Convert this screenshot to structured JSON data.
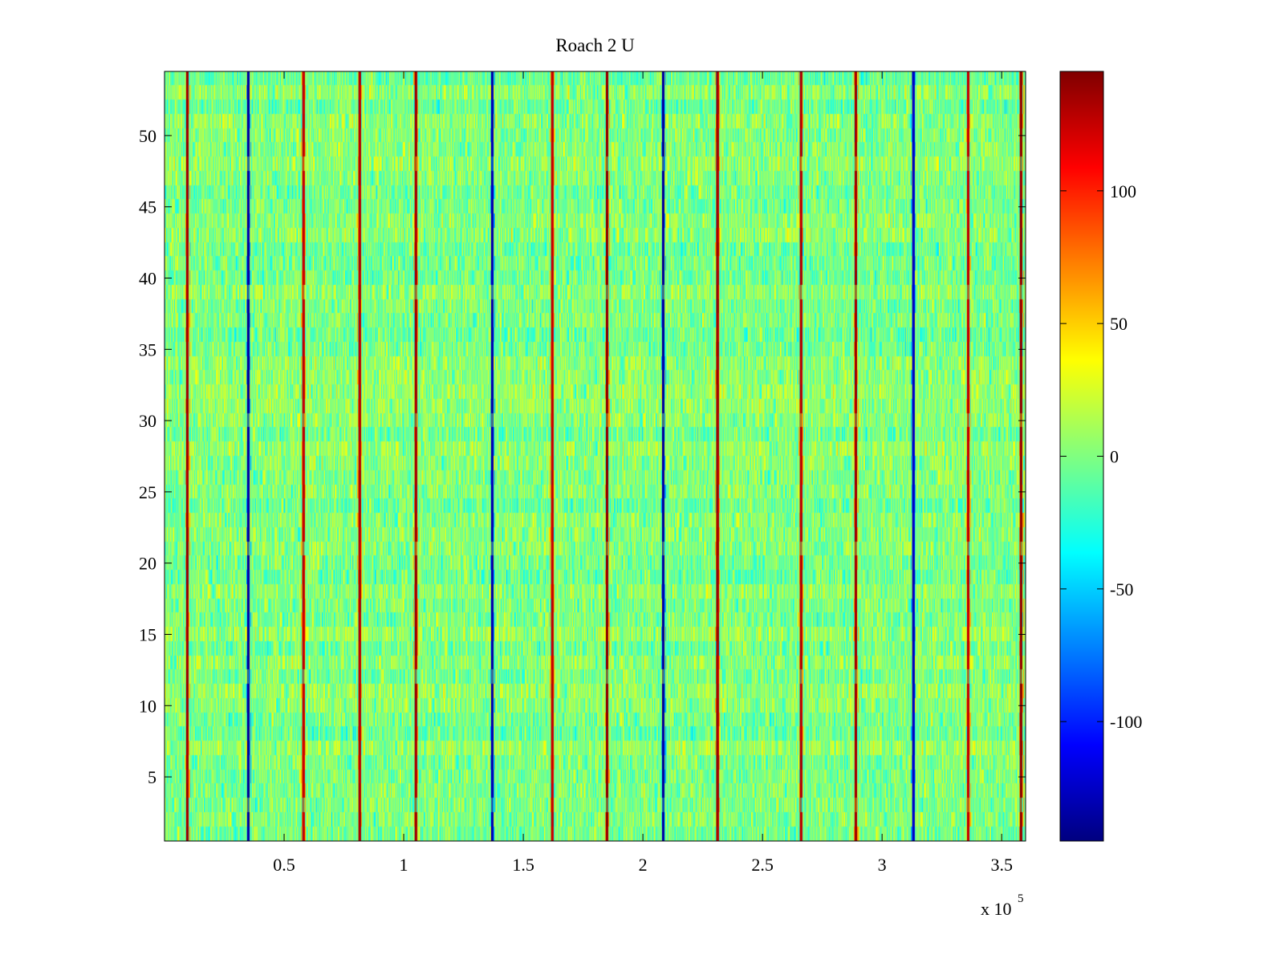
{
  "chart_data": {
    "type": "heatmap",
    "title": "Roach 2 U",
    "xlabel": "",
    "ylabel": "",
    "xlim": [
      0,
      360000
    ],
    "ylim": [
      0.5,
      54.5
    ],
    "x_ticks": [
      50000,
      100000,
      150000,
      200000,
      250000,
      300000,
      350000
    ],
    "x_tick_labels": [
      "0.5",
      "1",
      "1.5",
      "2",
      "2.5",
      "3",
      "3.5"
    ],
    "x_multiplier": {
      "base": "x 10",
      "exponent": "5"
    },
    "y_ticks": [
      5,
      10,
      15,
      20,
      25,
      30,
      35,
      40,
      45,
      50
    ],
    "y_tick_labels": [
      "5",
      "10",
      "15",
      "20",
      "25",
      "30",
      "35",
      "40",
      "45",
      "50"
    ],
    "rows": 54,
    "colorbar": {
      "colormap": "jet",
      "limits": [
        -145,
        145
      ],
      "ticks": [
        -100,
        -50,
        0,
        50,
        100
      ],
      "tick_labels": [
        "-100",
        "-50",
        "0",
        "50",
        "100"
      ]
    },
    "background_value_range": [
      -35,
      35
    ],
    "periodic_spikes": {
      "x_positions": [
        9500,
        35000,
        58000,
        81500,
        105000,
        137000,
        162000,
        185000,
        208500,
        231000,
        266000,
        289000,
        313000,
        336000,
        358000
      ],
      "values": [
        140,
        -140,
        130,
        135,
        140,
        -135,
        130,
        145,
        -140,
        140,
        135,
        140,
        -130,
        130,
        145
      ]
    },
    "grid": false,
    "legend": "none"
  }
}
